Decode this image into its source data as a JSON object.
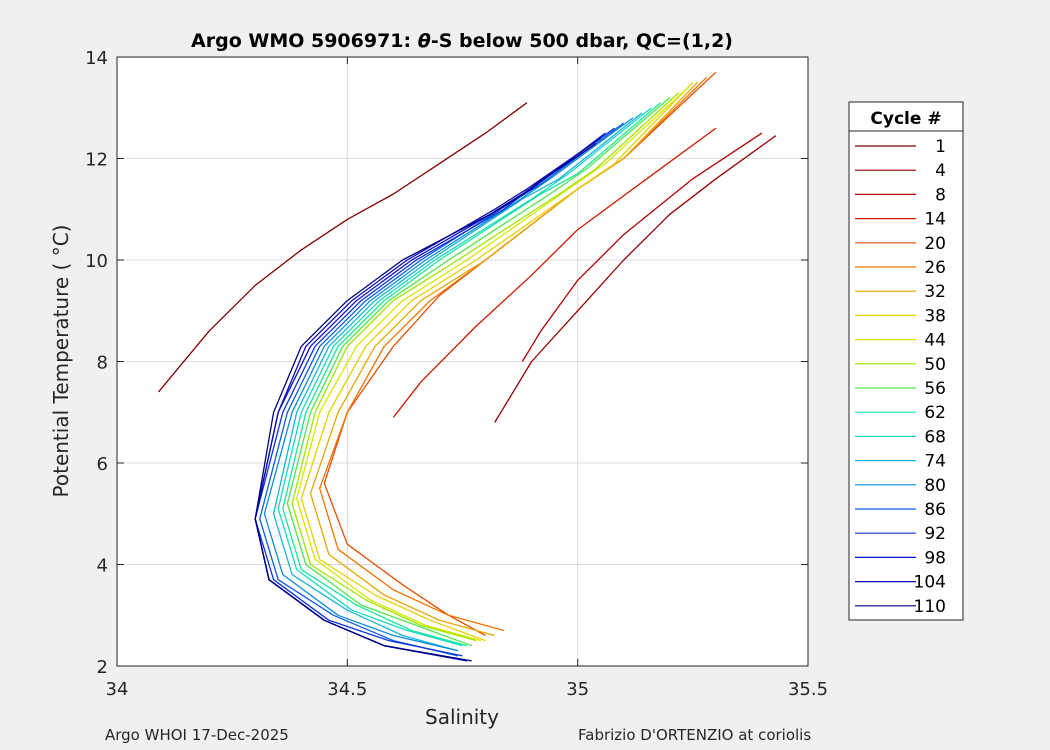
{
  "chart_data": {
    "type": "line",
    "title_prefix": "Argo WMO 5906971: ",
    "title_theta": "θ",
    "title_suffix": "-S below 500 dbar,  QC=(1,2)",
    "xlabel": "Salinity",
    "ylabel": "Potential Temperature ( °C)",
    "xlim": [
      34,
      35.5
    ],
    "ylim": [
      2,
      14
    ],
    "xticks": [
      34,
      34.5,
      35,
      35.5
    ],
    "xtick_labels": [
      "34",
      "34.5",
      "35",
      "35.5"
    ],
    "yticks": [
      2,
      4,
      6,
      8,
      10,
      12,
      14
    ],
    "ytick_labels": [
      "2",
      "4",
      "6",
      "8",
      "10",
      "12",
      "14"
    ],
    "grid": true,
    "legend_title": "Cycle #",
    "legend_position": "outside-right",
    "series": [
      {
        "name": "1",
        "color": "#800000",
        "x": [
          34.09,
          34.2,
          34.3,
          34.4,
          34.5,
          34.6,
          34.7,
          34.8,
          34.89
        ],
        "y": [
          7.4,
          8.6,
          9.5,
          10.2,
          10.8,
          11.3,
          11.9,
          12.5,
          13.1
        ]
      },
      {
        "name": "4",
        "color": "#990000",
        "x": [
          35.43,
          35.3,
          35.2,
          35.1,
          35.0,
          34.9,
          34.84,
          34.82
        ],
        "y": [
          12.45,
          11.6,
          10.9,
          10.0,
          9.0,
          8.0,
          7.1,
          6.8
        ]
      },
      {
        "name": "8",
        "color": "#b30000",
        "x": [
          35.4,
          35.25,
          35.1,
          35.0,
          34.92,
          34.88
        ],
        "y": [
          12.5,
          11.6,
          10.5,
          9.6,
          8.6,
          8.0
        ]
      },
      {
        "name": "14",
        "color": "#cc1a00",
        "x": [
          35.3,
          35.15,
          35.0,
          34.9,
          34.78,
          34.66,
          34.6
        ],
        "y": [
          12.6,
          11.6,
          10.6,
          9.7,
          8.7,
          7.6,
          6.9
        ]
      },
      {
        "name": "20",
        "color": "#e64d00",
        "x": [
          35.3,
          35.1,
          35.0,
          34.8,
          34.7,
          34.6,
          34.5,
          34.45,
          34.5,
          34.62,
          34.72,
          34.8
        ],
        "y": [
          13.7,
          12.0,
          11.4,
          10.0,
          9.3,
          8.3,
          7.0,
          5.6,
          4.4,
          3.6,
          3.0,
          2.6
        ]
      },
      {
        "name": "26",
        "color": "#f27300",
        "x": [
          35.28,
          35.1,
          35.0,
          34.8,
          34.68,
          34.58,
          34.5,
          34.44,
          34.48,
          34.6,
          34.72,
          34.84
        ],
        "y": [
          13.6,
          12.0,
          11.4,
          10.0,
          9.2,
          8.3,
          7.0,
          5.5,
          4.3,
          3.5,
          3.0,
          2.7
        ]
      },
      {
        "name": "32",
        "color": "#e6a600",
        "x": [
          35.26,
          35.1,
          35.0,
          34.8,
          34.66,
          34.56,
          34.48,
          34.42,
          34.46,
          34.58,
          34.7,
          34.82
        ],
        "y": [
          13.5,
          12.0,
          11.4,
          10.0,
          9.2,
          8.3,
          7.0,
          5.4,
          4.2,
          3.4,
          2.9,
          2.6
        ]
      },
      {
        "name": "38",
        "color": "#e6d000",
        "x": [
          35.25,
          35.08,
          35.0,
          34.78,
          34.64,
          34.54,
          34.46,
          34.4,
          34.44,
          34.56,
          34.68,
          34.8
        ],
        "y": [
          13.5,
          11.9,
          11.4,
          10.0,
          9.2,
          8.3,
          7.0,
          5.3,
          4.1,
          3.4,
          2.9,
          2.5
        ]
      },
      {
        "name": "44",
        "color": "#d9e600",
        "x": [
          35.24,
          35.06,
          34.98,
          34.76,
          34.62,
          34.52,
          34.44,
          34.39,
          34.43,
          34.55,
          34.67,
          34.79
        ],
        "y": [
          13.4,
          11.9,
          11.4,
          10.0,
          9.2,
          8.3,
          7.0,
          5.3,
          4.1,
          3.3,
          2.8,
          2.5
        ]
      },
      {
        "name": "50",
        "color": "#9ee600",
        "x": [
          35.22,
          35.04,
          34.96,
          34.74,
          34.6,
          34.5,
          34.43,
          34.38,
          34.42,
          34.54,
          34.66,
          34.78
        ],
        "y": [
          13.3,
          11.8,
          11.3,
          10.0,
          9.2,
          8.3,
          7.0,
          5.2,
          4.0,
          3.3,
          2.8,
          2.5
        ]
      },
      {
        "name": "56",
        "color": "#4de64d",
        "x": [
          35.2,
          35.02,
          34.94,
          34.72,
          34.59,
          34.49,
          34.42,
          34.37,
          34.41,
          34.53,
          34.65,
          34.77
        ],
        "y": [
          13.2,
          11.8,
          11.3,
          10.0,
          9.2,
          8.3,
          7.0,
          5.2,
          4.0,
          3.2,
          2.8,
          2.4
        ]
      },
      {
        "name": "62",
        "color": "#1ae699",
        "x": [
          35.18,
          35.0,
          34.92,
          34.7,
          34.58,
          34.48,
          34.41,
          34.36,
          34.4,
          34.52,
          34.64,
          34.76
        ],
        "y": [
          13.1,
          11.7,
          11.3,
          10.0,
          9.2,
          8.3,
          7.0,
          5.1,
          3.9,
          3.2,
          2.7,
          2.4
        ]
      },
      {
        "name": "68",
        "color": "#1ad9c4",
        "x": [
          35.16,
          34.98,
          34.9,
          34.69,
          34.57,
          34.47,
          34.4,
          34.35,
          34.39,
          34.51,
          34.63,
          34.75
        ],
        "y": [
          13.0,
          11.7,
          11.2,
          10.0,
          9.2,
          8.3,
          7.0,
          5.1,
          3.9,
          3.1,
          2.7,
          2.4
        ]
      },
      {
        "name": "74",
        "color": "#1ab3d9",
        "x": [
          35.14,
          34.96,
          34.88,
          34.68,
          34.56,
          34.46,
          34.39,
          34.34,
          34.38,
          34.5,
          34.62,
          34.74
        ],
        "y": [
          12.9,
          11.6,
          11.2,
          10.0,
          9.2,
          8.3,
          7.0,
          5.0,
          3.8,
          3.1,
          2.6,
          2.3
        ]
      },
      {
        "name": "80",
        "color": "#0d8cd9",
        "x": [
          35.12,
          34.94,
          34.86,
          34.67,
          34.55,
          34.45,
          34.38,
          34.32,
          34.36,
          34.48,
          34.6,
          34.74
        ],
        "y": [
          12.8,
          11.6,
          11.1,
          10.0,
          9.2,
          8.3,
          7.0,
          5.0,
          3.8,
          3.0,
          2.6,
          2.3
        ]
      },
      {
        "name": "86",
        "color": "#0d5ce6",
        "x": [
          35.1,
          34.92,
          34.85,
          34.66,
          34.54,
          34.44,
          34.37,
          34.31,
          34.35,
          34.47,
          34.6,
          34.74
        ],
        "y": [
          12.7,
          11.5,
          11.1,
          10.0,
          9.2,
          8.3,
          7.0,
          4.9,
          3.7,
          3.0,
          2.5,
          2.2
        ]
      },
      {
        "name": "92",
        "color": "#0d33d9",
        "x": [
          35.08,
          34.91,
          34.84,
          34.65,
          34.53,
          34.43,
          34.36,
          34.3,
          34.34,
          34.46,
          34.59,
          34.75
        ],
        "y": [
          12.6,
          11.5,
          11.0,
          10.0,
          9.2,
          8.3,
          7.0,
          4.9,
          3.7,
          2.9,
          2.5,
          2.2
        ]
      },
      {
        "name": "98",
        "color": "#0d0dcc",
        "x": [
          35.06,
          34.9,
          34.83,
          34.64,
          34.52,
          34.42,
          34.35,
          34.3,
          34.33,
          34.45,
          34.58,
          34.76
        ],
        "y": [
          12.5,
          11.4,
          11.0,
          10.0,
          9.2,
          8.3,
          7.0,
          4.9,
          3.7,
          2.9,
          2.4,
          2.1
        ]
      },
      {
        "name": "104",
        "color": "#0d0db3",
        "x": [
          35.05,
          34.89,
          34.82,
          34.63,
          34.51,
          34.41,
          34.35,
          34.3,
          34.33,
          34.45,
          34.58,
          34.76
        ],
        "y": [
          12.4,
          11.4,
          11.0,
          10.0,
          9.2,
          8.3,
          7.0,
          4.9,
          3.7,
          2.9,
          2.4,
          2.1
        ]
      },
      {
        "name": "110",
        "color": "#000080",
        "x": [
          35.04,
          34.88,
          34.81,
          34.62,
          34.5,
          34.4,
          34.34,
          34.3,
          34.33,
          34.45,
          34.58,
          34.77
        ],
        "y": [
          12.3,
          11.3,
          10.9,
          10.0,
          9.2,
          8.3,
          7.0,
          4.9,
          3.7,
          2.9,
          2.4,
          2.1
        ]
      }
    ]
  },
  "footer": {
    "left": "Argo WHOI 17-Dec-2025",
    "right": "Fabrizio D'ORTENZIO at coriolis"
  }
}
